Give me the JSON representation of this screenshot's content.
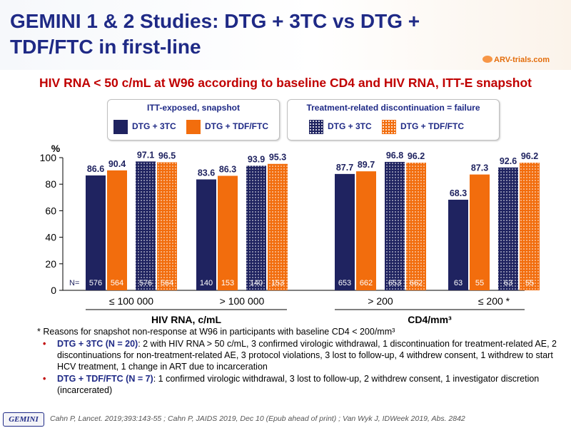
{
  "header": {
    "title": "GEMINI 1 & 2 Studies: DTG + 3TC vs DTG + TDF/FTC in first-line",
    "logo_text": "ARV-trials.com"
  },
  "subtitle": "HIV RNA < 50 c/mL at W96 according to baseline CD4 and HIV RNA, ITT-E snapshot",
  "legend": {
    "left_title": "ITT-exposed, snapshot",
    "right_title": "Treatment-related discontinuation = failure",
    "dtg_3tc": "DTG + 3TC",
    "dtg_tdf": "DTG + TDF/FTC"
  },
  "colors": {
    "navy": "#1f2360",
    "orange": "#f26d0d",
    "title_blue": "#1f2a86",
    "red": "#c00000"
  },
  "chart_data": {
    "type": "bar",
    "ylabel": "%",
    "ylim": [
      0,
      100
    ],
    "yticks": [
      0,
      20,
      40,
      60,
      80,
      100
    ],
    "grid": false,
    "categories": [
      "≤ 100 000",
      "> 100 000",
      "> 200",
      "≤ 200 *"
    ],
    "category_groups": [
      {
        "label": "HIV RNA, c/mL",
        "categories": [
          0,
          1
        ]
      },
      {
        "label": "CD4/mm³",
        "categories": [
          2,
          3
        ]
      }
    ],
    "n_label": "N=",
    "series": [
      {
        "name": "DTG + 3TC",
        "type": "ITT-exposed, snapshot",
        "values": [
          86.6,
          83.6,
          87.7,
          68.3
        ],
        "n": [
          576,
          140,
          653,
          63
        ]
      },
      {
        "name": "DTG + TDF/FTC",
        "type": "ITT-exposed, snapshot",
        "values": [
          90.4,
          86.3,
          89.7,
          87.3
        ],
        "n": [
          564,
          153,
          662,
          55
        ]
      },
      {
        "name": "DTG + 3TC",
        "type": "Treatment-related discontinuation = failure",
        "values": [
          97.1,
          93.9,
          96.8,
          92.6
        ],
        "n": [
          576,
          140,
          653,
          63
        ]
      },
      {
        "name": "DTG + TDF/FTC",
        "type": "Treatment-related discontinuation = failure",
        "values": [
          96.5,
          95.3,
          96.2,
          96.2
        ],
        "n": [
          564,
          153,
          662,
          55
        ]
      }
    ]
  },
  "notes": {
    "star": "* Reasons for snapshot non-response at W96 in participants with baseline CD4 < 200/mm³",
    "b1_label": "DTG + 3TC (N = 20)",
    "b1_text": ": 2 with HIV RNA > 50 c/mL, 3 confirmed virologic withdrawal, 1 discontinuation for treatment-related AE, 2 discontinuations for non-treatment-related AE, 3 protocol violations, 3 lost to follow-up, 4 withdrew consent, 1 withdrew to start HCV treatment, 1 change in ART due to incarceration",
    "b2_label": "DTG + TDF/FTC (N = 7)",
    "b2_text": ": 1 confirmed virologic withdrawal, 3 lost to follow-up, 2 withdrew consent, 1 investigator discretion (incarcerated)"
  },
  "footer": {
    "badge": "GEMINI",
    "reference": "Cahn P, Lancet. 2019;393:143-55 ; Cahn P, JAIDS 2019, Dec 10 (Epub ahead of print) ; Van Wyk J, IDWeek 2019, Abs. 2842"
  }
}
